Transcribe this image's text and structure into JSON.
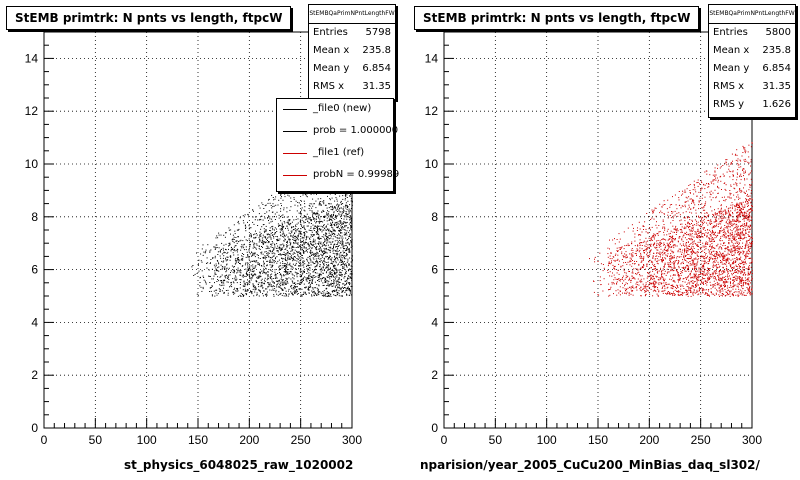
{
  "chart_data": [
    {
      "type": "scatter",
      "title": "StEMB primtrk: N pnts vs length, ftpcW",
      "xlabel": "st_physics_6048025_raw_1020002",
      "ylabel": "",
      "xlim": [
        0,
        300
      ],
      "ylim": [
        0,
        15
      ],
      "xticks": [
        "0",
        "50",
        "100",
        "150",
        "200",
        "250",
        "300"
      ],
      "yticks": [
        "0",
        "2",
        "4",
        "6",
        "8",
        "10",
        "12",
        "14"
      ],
      "color": "#000000",
      "stats": {
        "name": "StEMBQaPrimNPntLengthFW",
        "rows": [
          {
            "label": "Entries",
            "value": "5798"
          },
          {
            "label": "Mean x",
            "value": "235.8"
          },
          {
            "label": "Mean y",
            "value": "6.854"
          },
          {
            "label": "RMS x",
            "value": "31.35"
          }
        ]
      },
      "legend": [
        {
          "text": "_file0 (new)",
          "color": "#000000"
        },
        {
          "text": "prob = 1.000000",
          "color": "#000000"
        },
        {
          "text": "_file1 (ref)",
          "color": "#cc0000"
        },
        {
          "text": "probN = 0.99989",
          "color": "#cc0000"
        }
      ]
    },
    {
      "type": "scatter",
      "title": "StEMB primtrk: N pnts vs length, ftpcW",
      "xlabel": "nparision/year_2005_CuCu200_MinBias_daq_sl302/",
      "ylabel": "",
      "xlim": [
        0,
        300
      ],
      "ylim": [
        0,
        15
      ],
      "xticks": [
        "0",
        "50",
        "100",
        "150",
        "200",
        "250",
        "300"
      ],
      "yticks": [
        "0",
        "2",
        "4",
        "6",
        "8",
        "10",
        "12",
        "14"
      ],
      "color": "#cc0000",
      "stats": {
        "name": "StEMBQaPrimNPntLengthFW",
        "rows": [
          {
            "label": "Entries",
            "value": "5800"
          },
          {
            "label": "Mean x",
            "value": "235.8"
          },
          {
            "label": "Mean y",
            "value": "6.854"
          },
          {
            "label": "RMS x",
            "value": "31.35"
          },
          {
            "label": "RMS y",
            "value": "1.626"
          }
        ]
      }
    }
  ]
}
